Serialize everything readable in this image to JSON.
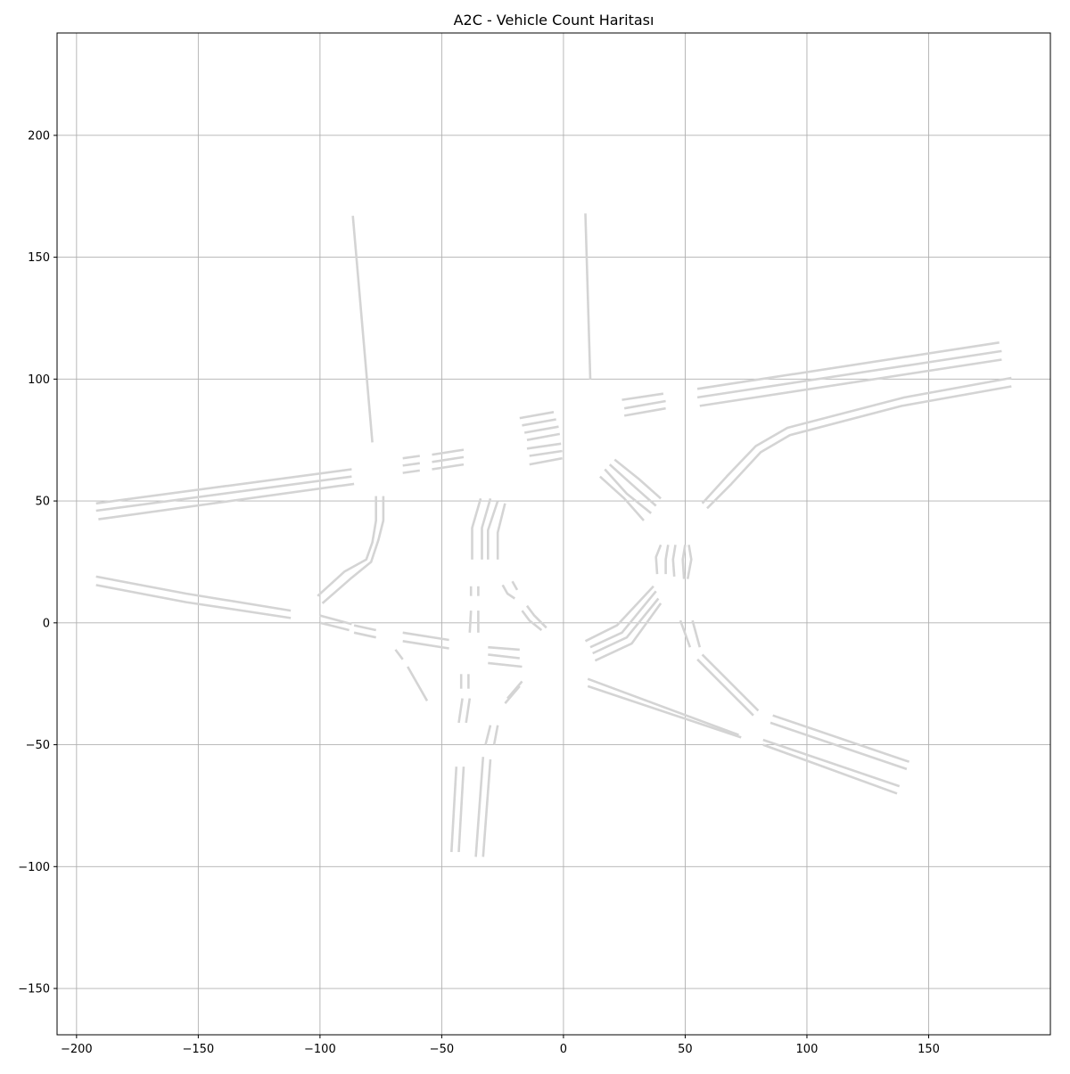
{
  "chart_data": {
    "type": "line",
    "title": "A2C - Vehicle Count Haritası",
    "xlabel": "",
    "ylabel": "",
    "xlim": [
      -208,
      200
    ],
    "ylim": [
      -169,
      242
    ],
    "xticks": [
      -200,
      -150,
      -100,
      -50,
      0,
      50,
      100,
      150
    ],
    "yticks": [
      -150,
      -100,
      -50,
      0,
      50,
      100,
      150,
      200
    ],
    "xtick_labels": [
      "−200",
      "−150",
      "−100",
      "−50",
      "0",
      "50",
      "100",
      "150"
    ],
    "ytick_labels": [
      "−150",
      "−100",
      "−50",
      "0",
      "50",
      "100",
      "150",
      "200"
    ],
    "grid": true,
    "line_color": "#d4d4d4",
    "series": [
      {
        "x": [
          -86.5,
          -78.5
        ],
        "y": [
          167,
          74
        ]
      },
      {
        "x": [
          9,
          11
        ],
        "y": [
          168,
          100
        ]
      },
      {
        "x": [
          -192,
          -87
        ],
        "y": [
          49,
          63
        ]
      },
      {
        "x": [
          -192,
          -87
        ],
        "y": [
          46,
          60
        ]
      },
      {
        "x": [
          -191,
          -86
        ],
        "y": [
          42.5,
          57
        ]
      },
      {
        "x": [
          -66,
          -59
        ],
        "y": [
          67.5,
          68.5
        ]
      },
      {
        "x": [
          -66,
          -59
        ],
        "y": [
          64.5,
          65.5
        ]
      },
      {
        "x": [
          -66,
          -59
        ],
        "y": [
          61.5,
          62.5
        ]
      },
      {
        "x": [
          -54,
          -41
        ],
        "y": [
          69,
          71
        ]
      },
      {
        "x": [
          -54,
          -41
        ],
        "y": [
          66,
          68
        ]
      },
      {
        "x": [
          -54,
          -41
        ],
        "y": [
          63,
          65
        ]
      },
      {
        "x": [
          -18,
          -4
        ],
        "y": [
          84,
          86.5
        ]
      },
      {
        "x": [
          -17,
          -3
        ],
        "y": [
          81,
          83.5
        ]
      },
      {
        "x": [
          -16,
          -2
        ],
        "y": [
          78,
          80.5
        ]
      },
      {
        "x": [
          -15,
          -1.5
        ],
        "y": [
          75,
          77.5
        ]
      },
      {
        "x": [
          -15,
          -1
        ],
        "y": [
          71.5,
          73.5
        ]
      },
      {
        "x": [
          -14,
          -0.5
        ],
        "y": [
          68.5,
          70.5
        ]
      },
      {
        "x": [
          -14,
          -0.5
        ],
        "y": [
          65,
          67.5
        ]
      },
      {
        "x": [
          24,
          41
        ],
        "y": [
          91.5,
          94
        ]
      },
      {
        "x": [
          25,
          42
        ],
        "y": [
          88,
          91
        ]
      },
      {
        "x": [
          25,
          42
        ],
        "y": [
          85,
          88
        ]
      },
      {
        "x": [
          55,
          179
        ],
        "y": [
          96,
          115
        ]
      },
      {
        "x": [
          55,
          180
        ],
        "y": [
          92.5,
          111.5
        ]
      },
      {
        "x": [
          56,
          180
        ],
        "y": [
          89,
          108
        ]
      },
      {
        "x": [
          57,
          67,
          79,
          92,
          140,
          184
        ],
        "y": [
          49,
          60,
          72.5,
          80,
          92.5,
          100.5
        ]
      },
      {
        "x": [
          59,
          69,
          81,
          93,
          139,
          184
        ],
        "y": [
          47,
          57,
          70,
          77,
          89,
          97
        ]
      },
      {
        "x": [
          21,
          31,
          40
        ],
        "y": [
          67,
          59,
          51
        ]
      },
      {
        "x": [
          19,
          29,
          38
        ],
        "y": [
          65,
          56,
          48
        ]
      },
      {
        "x": [
          17,
          26,
          36
        ],
        "y": [
          63,
          53,
          45
        ]
      },
      {
        "x": [
          15,
          25,
          33
        ],
        "y": [
          60,
          51,
          42
        ]
      },
      {
        "x": [
          -77,
          -77,
          -78.5,
          -81,
          -90,
          -101
        ],
        "y": [
          52,
          42,
          33,
          26,
          21,
          11
        ]
      },
      {
        "x": [
          -74,
          -74,
          -76,
          -79,
          -87,
          -99
        ],
        "y": [
          52,
          42,
          34,
          25,
          18.5,
          8
        ]
      },
      {
        "x": [
          -34,
          -37.5,
          -37.5
        ],
        "y": [
          51,
          39,
          26
        ]
      },
      {
        "x": [
          -30,
          -33.5,
          -33.5
        ],
        "y": [
          51,
          39,
          26
        ]
      },
      {
        "x": [
          -27,
          -31,
          -31
        ],
        "y": [
          50,
          38,
          26
        ]
      },
      {
        "x": [
          -24,
          -27,
          -27
        ],
        "y": [
          49,
          37,
          26
        ]
      },
      {
        "x": [
          -192,
          -155,
          -112
        ],
        "y": [
          19,
          12,
          5
        ]
      },
      {
        "x": [
          -192,
          -155,
          -112
        ],
        "y": [
          15.5,
          8.5,
          2
        ]
      },
      {
        "x": [
          -100,
          -87
        ],
        "y": [
          3,
          -0.5
        ]
      },
      {
        "x": [
          -100,
          -88
        ],
        "y": [
          0,
          -3
        ]
      },
      {
        "x": [
          -86,
          -77
        ],
        "y": [
          -1,
          -3
        ]
      },
      {
        "x": [
          -86,
          -77
        ],
        "y": [
          -4,
          -6
        ]
      },
      {
        "x": [
          -66,
          -47
        ],
        "y": [
          -4,
          -7
        ]
      },
      {
        "x": [
          -66,
          -47
        ],
        "y": [
          -7.5,
          -10.5
        ]
      },
      {
        "x": [
          -69,
          -66
        ],
        "y": [
          -11,
          -15
        ]
      },
      {
        "x": [
          -64,
          -56
        ],
        "y": [
          -18,
          -32
        ]
      },
      {
        "x": [
          -38,
          -38
        ],
        "y": [
          15,
          11
        ]
      },
      {
        "x": [
          -38,
          -38.5
        ],
        "y": [
          5,
          -4
        ]
      },
      {
        "x": [
          -35,
          -35
        ],
        "y": [
          15,
          11
        ]
      },
      {
        "x": [
          -35,
          -35
        ],
        "y": [
          5,
          -4
        ]
      },
      {
        "x": [
          -25,
          -23,
          -20
        ],
        "y": [
          15.5,
          12,
          10
        ]
      },
      {
        "x": [
          -21,
          -19
        ],
        "y": [
          17,
          13.5
        ]
      },
      {
        "x": [
          -17,
          -14,
          -9
        ],
        "y": [
          5,
          1,
          -3
        ]
      },
      {
        "x": [
          -15,
          -12,
          -7
        ],
        "y": [
          7,
          3,
          -2
        ]
      },
      {
        "x": [
          -31,
          -18
        ],
        "y": [
          -10,
          -11
        ]
      },
      {
        "x": [
          -31,
          -18
        ],
        "y": [
          -13,
          -14.5
        ]
      },
      {
        "x": [
          -31,
          -17
        ],
        "y": [
          -16.5,
          -18
        ]
      },
      {
        "x": [
          -42,
          -42
        ],
        "y": [
          -21,
          -27
        ]
      },
      {
        "x": [
          -41.5,
          -43
        ],
        "y": [
          -31,
          -41
        ]
      },
      {
        "x": [
          -39,
          -39
        ],
        "y": [
          -21,
          -27
        ]
      },
      {
        "x": [
          -38.5,
          -40
        ],
        "y": [
          -31,
          -41
        ]
      },
      {
        "x": [
          -23,
          -17
        ],
        "y": [
          -31,
          -24
        ]
      },
      {
        "x": [
          -24,
          -18
        ],
        "y": [
          -33,
          -26
        ]
      },
      {
        "x": [
          -30,
          -32
        ],
        "y": [
          -42,
          -50
        ]
      },
      {
        "x": [
          -27,
          -28.5
        ],
        "y": [
          -42,
          -50
        ]
      },
      {
        "x": [
          -44,
          -46
        ],
        "y": [
          -59,
          -94
        ]
      },
      {
        "x": [
          -41,
          -43
        ],
        "y": [
          -59,
          -94
        ]
      },
      {
        "x": [
          -33,
          -36
        ],
        "y": [
          -55,
          -96
        ]
      },
      {
        "x": [
          -30,
          -33
        ],
        "y": [
          -56,
          -96
        ]
      },
      {
        "x": [
          9,
          22,
          37
        ],
        "y": [
          -7.5,
          -1,
          15
        ]
      },
      {
        "x": [
          11,
          24,
          38
        ],
        "y": [
          -10,
          -4,
          13
        ]
      },
      {
        "x": [
          12,
          26,
          39
        ],
        "y": [
          -12.5,
          -6,
          10
        ]
      },
      {
        "x": [
          13,
          28,
          40
        ],
        "y": [
          -15.5,
          -8.5,
          8
        ]
      },
      {
        "x": [
          40,
          38,
          38.5
        ],
        "y": [
          32,
          27,
          20
        ]
      },
      {
        "x": [
          43,
          42,
          42
        ],
        "y": [
          32,
          26,
          20
        ]
      },
      {
        "x": [
          46,
          45,
          45.5
        ],
        "y": [
          32,
          26,
          19
        ]
      },
      {
        "x": [
          50,
          49,
          49.5
        ],
        "y": [
          32,
          26,
          18
        ]
      },
      {
        "x": [
          51.5,
          52.5,
          51
        ],
        "y": [
          32,
          26,
          18
        ]
      },
      {
        "x": [
          48,
          52
        ],
        "y": [
          1,
          -10
        ]
      },
      {
        "x": [
          53,
          56
        ],
        "y": [
          1,
          -10
        ]
      },
      {
        "x": [
          55,
          78
        ],
        "y": [
          -15,
          -38
        ]
      },
      {
        "x": [
          57,
          80
        ],
        "y": [
          -13,
          -36
        ]
      },
      {
        "x": [
          10,
          72
        ],
        "y": [
          -23,
          -46
        ]
      },
      {
        "x": [
          10,
          73
        ],
        "y": [
          -26,
          -47
        ]
      },
      {
        "x": [
          86,
          142
        ],
        "y": [
          -38,
          -57
        ]
      },
      {
        "x": [
          85,
          141
        ],
        "y": [
          -41,
          -60
        ]
      },
      {
        "x": [
          82,
          138
        ],
        "y": [
          -48,
          -67
        ]
      },
      {
        "x": [
          82,
          137
        ],
        "y": [
          -50,
          -70
        ]
      }
    ]
  }
}
